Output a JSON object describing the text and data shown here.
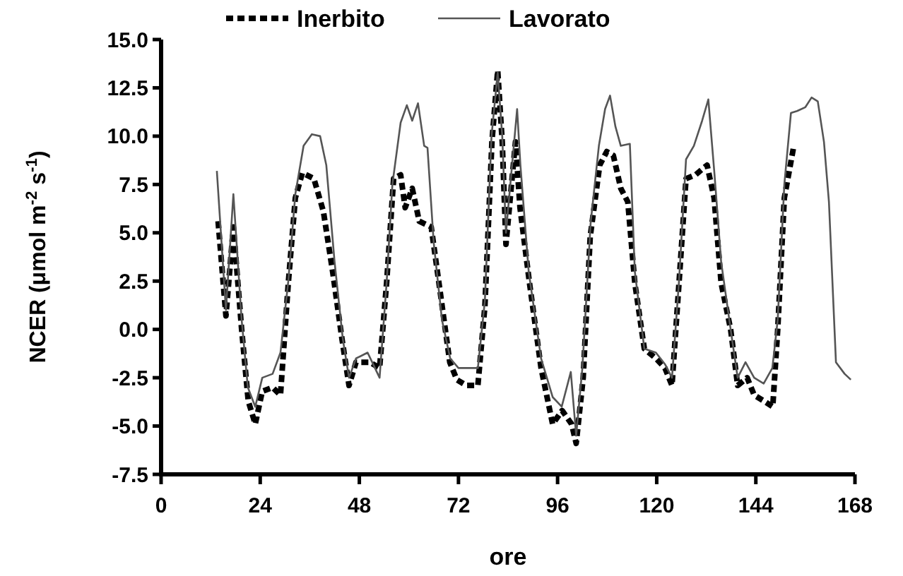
{
  "chart_data": {
    "type": "line",
    "xlabel": "ore",
    "ylabel": "NCER (μmol m$^{-2}$ s$^{-1}$)",
    "xlim": [
      0,
      168
    ],
    "xticks": [
      0,
      24,
      48,
      72,
      96,
      120,
      144,
      168
    ],
    "ylim": [
      -7.5,
      15
    ],
    "yticks": [
      {
        "value": -7.5,
        "label": "-7.5"
      },
      {
        "value": -5,
        "label": "-5.0"
      },
      {
        "value": -2.5,
        "label": "-2.5"
      },
      {
        "value": 0,
        "label": "0.0"
      },
      {
        "value": 2.5,
        "label": "2.5"
      },
      {
        "value": 5,
        "label": "5.0"
      },
      {
        "value": 7.5,
        "label": "7.5"
      },
      {
        "value": 10,
        "label": "10.0"
      },
      {
        "value": 12.5,
        "label": "12.5"
      },
      {
        "value": 15,
        "label": "15.0"
      }
    ],
    "grid": false,
    "legend": "top",
    "marker": "none",
    "series": [
      {
        "name": "Inerbito",
        "color": "#000000",
        "line_style": "dashed",
        "x": [
          13.8,
          15.7,
          17.5,
          19.5,
          21.1,
          22.8,
          24.5,
          27,
          28.9,
          30.8,
          32.5,
          34.2,
          37,
          39.3,
          41.6,
          43.8,
          45.5,
          47.2,
          50.6,
          52.9,
          54.6,
          56.3,
          58,
          59.1,
          60.8,
          62.5,
          65.4,
          67.6,
          69.9,
          71.6,
          73.9,
          76.7,
          78.4,
          80.1,
          81.5,
          82.6,
          83.5,
          85.8,
          86.9,
          89.2,
          92,
          94.8,
          97.1,
          99.4,
          100.5,
          102.2,
          103.9,
          106.2,
          107.9,
          109.5,
          111.3,
          113,
          114.7,
          117,
          119.8,
          122,
          123.7,
          125.4,
          127.1,
          129.4,
          132.2,
          133.9,
          135.6,
          137.9,
          139.6,
          141.9,
          143.6,
          145.9,
          148.1,
          149.3,
          150.9,
          153.2
        ],
        "values": [
          5.6,
          0.7,
          5.3,
          0,
          -3.7,
          -4.9,
          -3.2,
          -3,
          -3.4,
          2.4,
          6.8,
          8.1,
          7.8,
          6.1,
          2.9,
          -0.5,
          -2.9,
          -1.7,
          -1.7,
          -2,
          2.4,
          7.8,
          8,
          6.3,
          7.3,
          5.6,
          5.3,
          1.9,
          -1.7,
          -2.6,
          -2.9,
          -2.9,
          1.2,
          9.7,
          13.4,
          9.7,
          4.4,
          9.7,
          6.3,
          2.4,
          -2,
          -4.9,
          -4.2,
          -4.9,
          -5.9,
          -2.5,
          4.8,
          8.5,
          9.2,
          9,
          7.3,
          6.6,
          2.4,
          -1,
          -1.5,
          -2,
          -2.9,
          2.4,
          7.8,
          8,
          8.5,
          6.8,
          2.4,
          0,
          -2.9,
          -2.5,
          -3.4,
          -3.7,
          -4,
          0,
          6.8,
          9.5
        ]
      },
      {
        "name": "Lavorato",
        "color": "#555555",
        "line_style": "solid",
        "x": [
          13.5,
          15.7,
          17.5,
          19.5,
          21,
          22.8,
          24.5,
          27,
          28.9,
          30.8,
          32.5,
          34.5,
          36.5,
          38.5,
          40,
          42,
          44,
          45.5,
          47.2,
          50,
          52.9,
          54.6,
          56,
          58,
          59.5,
          60.8,
          62.2,
          63.7,
          64.5,
          66,
          68,
          70,
          72,
          76.7,
          78.4,
          80,
          81.5,
          82.6,
          83.5,
          86.2,
          87,
          89,
          92,
          94.8,
          97,
          99.2,
          100.5,
          102,
          104,
          106,
          107.5,
          108.7,
          110,
          111.3,
          113.5,
          114.7,
          117,
          119.8,
          122,
          123.7,
          125.4,
          127.1,
          129,
          131,
          132.5,
          134,
          135.6,
          137.9,
          139.6,
          141.5,
          143.6,
          145.9,
          148,
          149.3,
          150.9,
          152.5,
          154,
          156,
          157.5,
          159,
          160.5,
          161.7,
          163.4,
          165.5,
          167
        ],
        "values": [
          8.2,
          1,
          7,
          0.5,
          -3,
          -4,
          -2.5,
          -2.3,
          -1.2,
          2.5,
          7,
          9.5,
          10.1,
          10,
          8.5,
          3.5,
          -0.5,
          -2.5,
          -1.5,
          -1.2,
          -2.5,
          2.4,
          7.5,
          10.7,
          11.6,
          10.8,
          11.7,
          9.5,
          9.4,
          4.5,
          0.5,
          -1.5,
          -2,
          -2,
          1.5,
          10,
          13.3,
          10,
          5,
          11.4,
          8.5,
          3,
          -1.5,
          -3.5,
          -4,
          -2.2,
          -5.5,
          -2,
          5.5,
          9.5,
          11.4,
          12.1,
          10.5,
          9.5,
          9.6,
          3,
          -1,
          -1.2,
          -1.8,
          -2.5,
          2.5,
          8.8,
          9.5,
          10.8,
          11.9,
          8,
          3.5,
          0,
          -2.5,
          -1.7,
          -2.5,
          -2.8,
          -2,
          0.5,
          7.5,
          11.2,
          11.3,
          11.5,
          12,
          11.8,
          9.7,
          6.6,
          -1.7,
          -2.3,
          -2.6
        ]
      }
    ]
  }
}
